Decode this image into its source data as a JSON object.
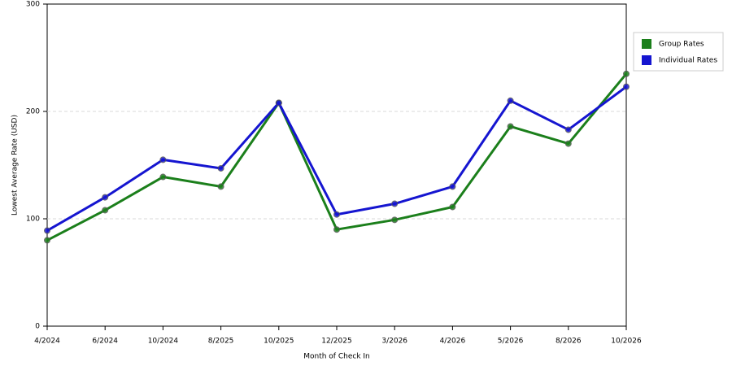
{
  "chart_data": {
    "type": "line",
    "x_label": "Month of Check In",
    "y_label": "Lowest Average Rate (USD)",
    "categories": [
      "4/2024",
      "6/2024",
      "10/2024",
      "8/2025",
      "10/2025",
      "12/2025",
      "3/2026",
      "4/2026",
      "5/2026",
      "8/2026",
      "10/2026"
    ],
    "series": [
      {
        "name": "Group Rates",
        "color": "#1b7f1b",
        "values": [
          80,
          108,
          139,
          130,
          208,
          90,
          99,
          111,
          186,
          170,
          235
        ]
      },
      {
        "name": "Individual Rates",
        "color": "#1515d0",
        "values": [
          89,
          120,
          155,
          147,
          208,
          104,
          114,
          130,
          210,
          183,
          223
        ]
      }
    ],
    "ylim": [
      0,
      300
    ],
    "yticks": [
      0,
      100,
      200,
      300
    ],
    "grid": true,
    "legend": "right"
  }
}
